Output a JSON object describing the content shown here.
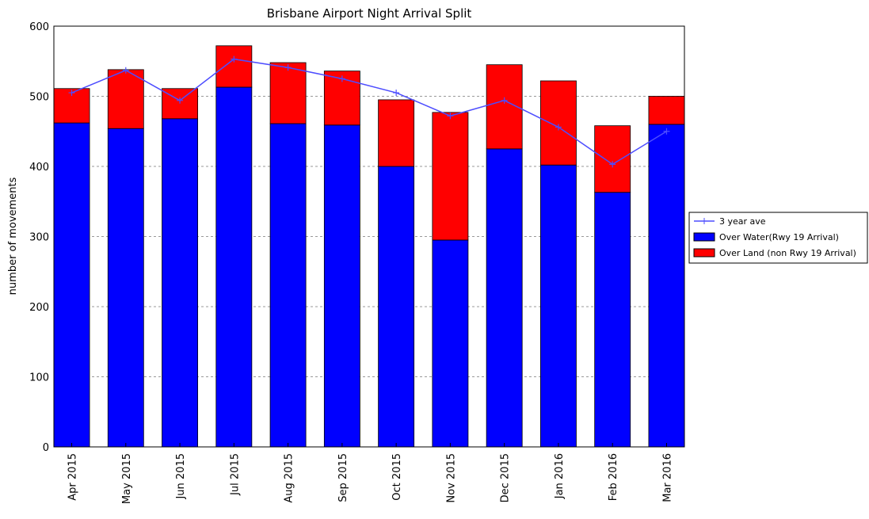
{
  "chart_data": {
    "type": "stacked_bar_line",
    "title": "Brisbane Airport Night Arrival Split",
    "y_label": "number of movements",
    "categories": [
      "Apr 2015",
      "May 2015",
      "Jun 2015",
      "Jul 2015",
      "Aug 2015",
      "Sep 2015",
      "Oct 2015",
      "Nov 2015",
      "Dec 2015",
      "Jan 2016",
      "Feb 2016",
      "Mar 2016"
    ],
    "series": [
      {
        "name": "3 year ave",
        "kind": "line",
        "color": "#4d4dff",
        "values": [
          505,
          537,
          494,
          553,
          541,
          525,
          505,
          472,
          494,
          456,
          403,
          450
        ]
      },
      {
        "name": "Over Water(Rwy 19 Arrival)",
        "kind": "bar",
        "color": "#0000ff",
        "values": [
          462,
          454,
          468,
          513,
          461,
          459,
          400,
          295,
          425,
          402,
          363,
          460
        ]
      },
      {
        "name": "Over Land (non Rwy 19 Arrival)",
        "kind": "bar",
        "color": "#ff0000",
        "values": [
          49,
          84,
          43,
          59,
          87,
          77,
          95,
          182,
          120,
          120,
          95,
          40
        ]
      }
    ],
    "ylim": [
      0,
      600
    ],
    "yticks": [
      0,
      100,
      200,
      300,
      400,
      500,
      600
    ],
    "grid": true,
    "legend": "right"
  }
}
